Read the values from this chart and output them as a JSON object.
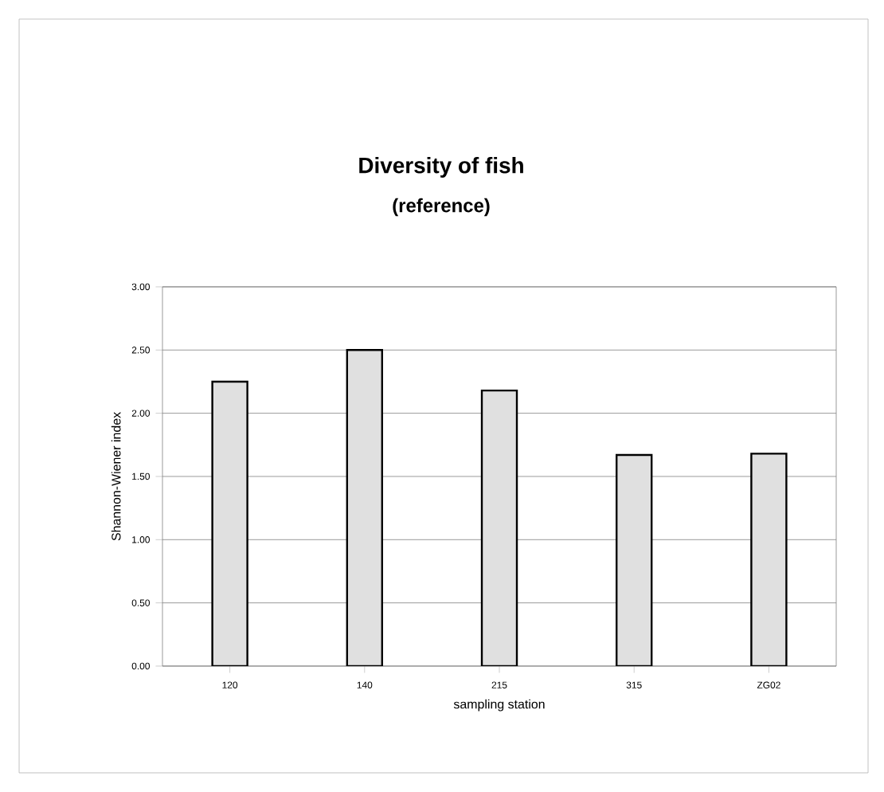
{
  "chart_data": {
    "type": "bar",
    "title": "Diversity of fish",
    "subtitle": "(reference)",
    "xlabel": "sampling station",
    "ylabel": "Shannon-Wiener index",
    "categories": [
      "120",
      "140",
      "215",
      "315",
      "ZG02"
    ],
    "values": [
      2.25,
      2.5,
      2.18,
      1.67,
      1.68
    ],
    "color": "#e0e0e0",
    "ylim": [
      0,
      3
    ],
    "yticks": [
      {
        "value": 0,
        "label": "0.00"
      },
      {
        "value": 0.5,
        "label": "0.50"
      },
      {
        "value": 1,
        "label": "1.00"
      },
      {
        "value": 1.5,
        "label": "1.50"
      },
      {
        "value": 2,
        "label": "2.00"
      },
      {
        "value": 2.5,
        "label": "2.50"
      },
      {
        "value": 3,
        "label": "3.00"
      }
    ],
    "grid": "y"
  }
}
